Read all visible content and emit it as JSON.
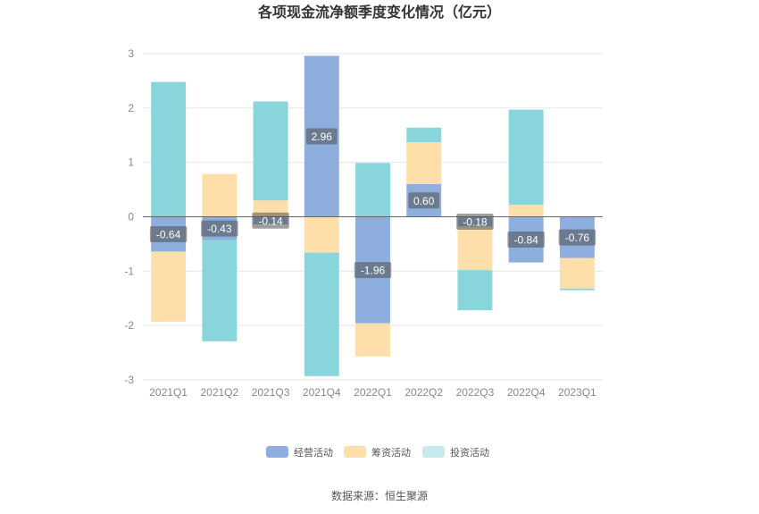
{
  "chart_data": {
    "type": "bar",
    "stacked": true,
    "title": "各项现金流净额季度变化情况（亿元）",
    "categories": [
      "2021Q1",
      "2021Q2",
      "2021Q3",
      "2021Q4",
      "2022Q1",
      "2022Q2",
      "2022Q3",
      "2022Q4",
      "2023Q1"
    ],
    "series": [
      {
        "name": "经营活动",
        "color": "#8eaedd",
        "values": [
          -0.64,
          -0.43,
          -0.14,
          2.96,
          -1.96,
          0.6,
          -0.18,
          -0.84,
          -0.76
        ],
        "labels": [
          "-0.64",
          "-0.43",
          "-0.14",
          "2.96",
          "-1.96",
          "0.60",
          "-0.18",
          "-0.84",
          "-0.76"
        ]
      },
      {
        "name": "筹资活动",
        "color": "#fedfa9",
        "values": [
          -1.29,
          0.79,
          0.3,
          -0.66,
          -0.61,
          0.77,
          -0.8,
          0.22,
          -0.56
        ]
      },
      {
        "name": "投资活动",
        "color": "#88d6db",
        "values": [
          2.48,
          -1.86,
          1.82,
          -2.27,
          0.99,
          0.27,
          -0.74,
          1.75,
          -0.03
        ]
      }
    ],
    "ylim": [
      -3,
      3
    ],
    "yticks": [
      "-3",
      "-2",
      "-1",
      "0",
      "1",
      "2",
      "3"
    ],
    "grid": true,
    "legend_position": "bottom",
    "legend_colors": [
      "#8eaedd",
      "#fedfa9",
      "#c5ebee"
    ],
    "source": "数据来源：恒生聚源"
  }
}
